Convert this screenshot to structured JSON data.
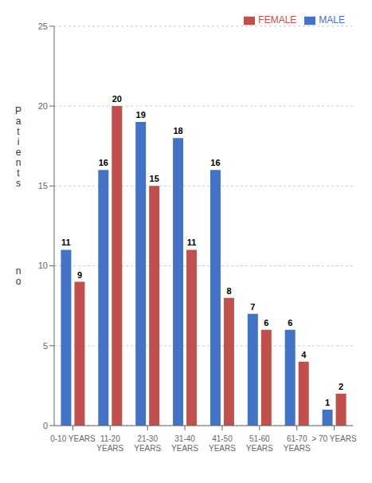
{
  "chart_data": {
    "type": "bar",
    "categories": [
      "0-10 YEARS",
      "11-20\nYEARS",
      "21-30\nYEARS",
      "31-40\nYEARS",
      "41-50\nYEARS",
      "51-60\nYEARS",
      "61-70\nYEARS",
      "> 70 YEARS"
    ],
    "series": [
      {
        "name": "MALE",
        "color": "#4472C4",
        "values": [
          11,
          16,
          19,
          18,
          16,
          7,
          6,
          1
        ]
      },
      {
        "name": "FEMALE",
        "color": "#C0504D",
        "values": [
          9,
          20,
          15,
          11,
          8,
          6,
          4,
          2
        ]
      }
    ],
    "ylabel": [
      "P\na\nt\ni\ne\nn\nt\ns",
      "n\no"
    ],
    "ylim": [
      0,
      25
    ],
    "yticks": [
      0,
      5,
      10,
      15,
      20,
      25
    ],
    "grid": true,
    "legend": "upper right",
    "data_labels": true
  }
}
